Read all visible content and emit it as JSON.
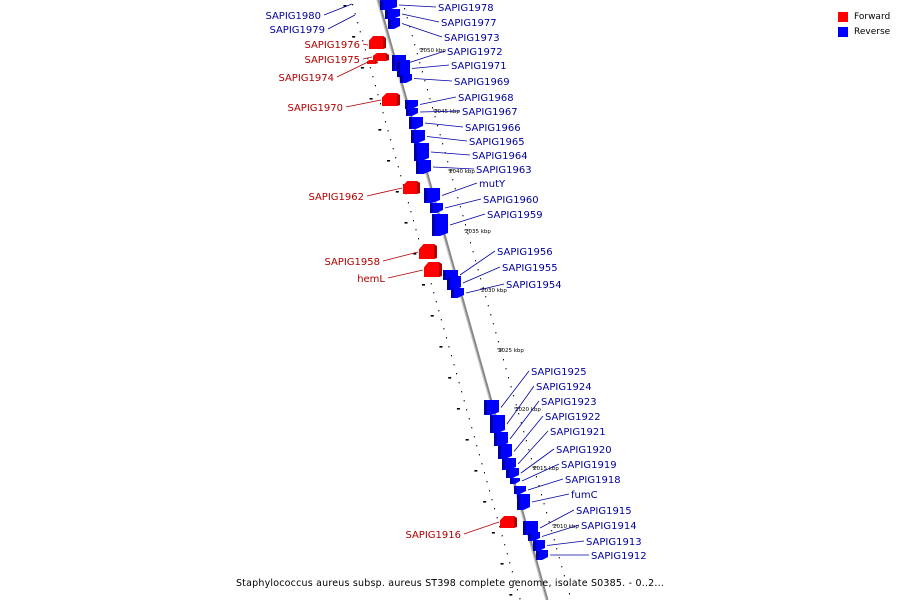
{
  "legend": {
    "items": [
      {
        "label": "Forward",
        "color": "#ff0000"
      },
      {
        "label": "Reverse",
        "color": "#0000ff"
      }
    ]
  },
  "caption": "Staphylococcus aureus subsp. aureus ST398 complete genome, isolate S0385. - 0..2...",
  "colors": {
    "forward": "#ff0000",
    "forward_dark": "#b00000",
    "reverse": "#0000ff",
    "reverse_dark": "#0000a0",
    "backbone": "#888888",
    "forward_label": "#b00000",
    "reverse_label": "#0000a0"
  },
  "ticks": [
    {
      "label": "2050 kbp"
    },
    {
      "label": "2045 kbp"
    },
    {
      "label": "2040 kbp"
    },
    {
      "label": "2035 kbp"
    },
    {
      "label": "2030 kbp"
    },
    {
      "label": "2025 kbp"
    },
    {
      "label": "2020 kbp"
    },
    {
      "label": "2015 kbp"
    },
    {
      "label": "2010 kbp"
    }
  ],
  "forward_genes": [
    {
      "name": "SAPIG1976"
    },
    {
      "name": "SAPIG1975"
    },
    {
      "name": "SAPIG1974"
    },
    {
      "name": "SAPIG1970"
    },
    {
      "name": "SAPIG1962"
    },
    {
      "name": "SAPIG1958"
    },
    {
      "name": "hemL"
    },
    {
      "name": "SAPIG1916"
    }
  ],
  "reverse_genes_left": [
    {
      "name": "SAPIG1980"
    },
    {
      "name": "SAPIG1979"
    }
  ],
  "reverse_genes": [
    {
      "name": "SAPIG1978"
    },
    {
      "name": "SAPIG1977"
    },
    {
      "name": "SAPIG1973"
    },
    {
      "name": "SAPIG1972"
    },
    {
      "name": "SAPIG1971"
    },
    {
      "name": "SAPIG1969"
    },
    {
      "name": "SAPIG1968"
    },
    {
      "name": "SAPIG1967"
    },
    {
      "name": "SAPIG1966"
    },
    {
      "name": "SAPIG1965"
    },
    {
      "name": "SAPIG1964"
    },
    {
      "name": "SAPIG1963"
    },
    {
      "name": "mutY"
    },
    {
      "name": "SAPIG1960"
    },
    {
      "name": "SAPIG1959"
    },
    {
      "name": "SAPIG1956"
    },
    {
      "name": "SAPIG1955"
    },
    {
      "name": "SAPIG1954"
    },
    {
      "name": "SAPIG1925"
    },
    {
      "name": "SAPIG1924"
    },
    {
      "name": "SAPIG1923"
    },
    {
      "name": "SAPIG1922"
    },
    {
      "name": "SAPIG1921"
    },
    {
      "name": "SAPIG1920"
    },
    {
      "name": "SAPIG1919"
    },
    {
      "name": "SAPIG1918"
    },
    {
      "name": "fumC"
    },
    {
      "name": "SAPIG1915"
    },
    {
      "name": "SAPIG1914"
    },
    {
      "name": "SAPIG1913"
    },
    {
      "name": "SAPIG1912"
    }
  ]
}
